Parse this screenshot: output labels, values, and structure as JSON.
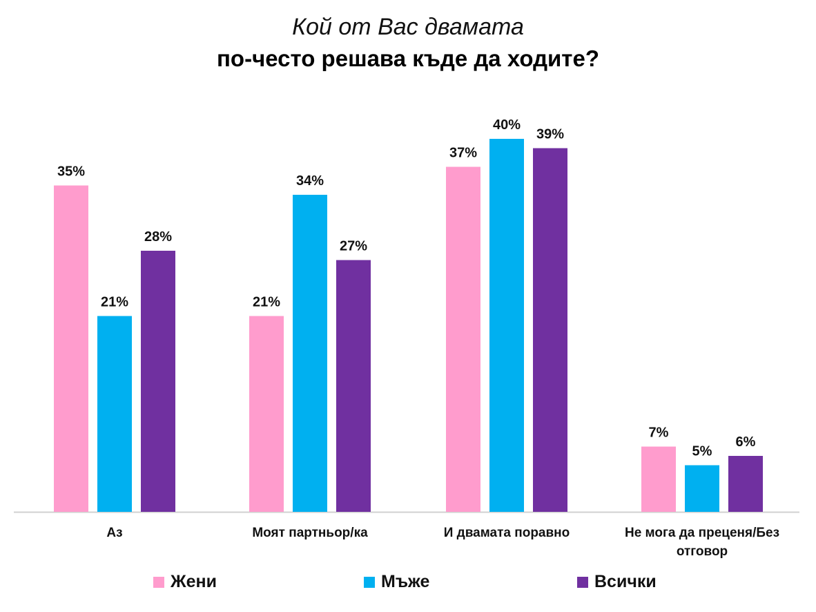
{
  "title": {
    "line1": "Кой от Вас двамата",
    "line2": "по-често решава къде да ходите?"
  },
  "chart_data": {
    "type": "bar",
    "categories": [
      "Аз",
      "Моят партньор/ка",
      "И двамата поравно",
      "Не мога да преценя/Без отговор"
    ],
    "series": [
      {
        "name": "Жени",
        "color": "#FF9CCD",
        "values": [
          35,
          21,
          37,
          7
        ]
      },
      {
        "name": "Мъже",
        "color": "#00B0F0",
        "values": [
          21,
          34,
          40,
          5
        ]
      },
      {
        "name": "Всички",
        "color": "#7030A0",
        "values": [
          28,
          27,
          39,
          6
        ]
      }
    ],
    "value_suffix": "%",
    "ylim": [
      0,
      40
    ],
    "grid": false,
    "legend_position": "bottom"
  }
}
